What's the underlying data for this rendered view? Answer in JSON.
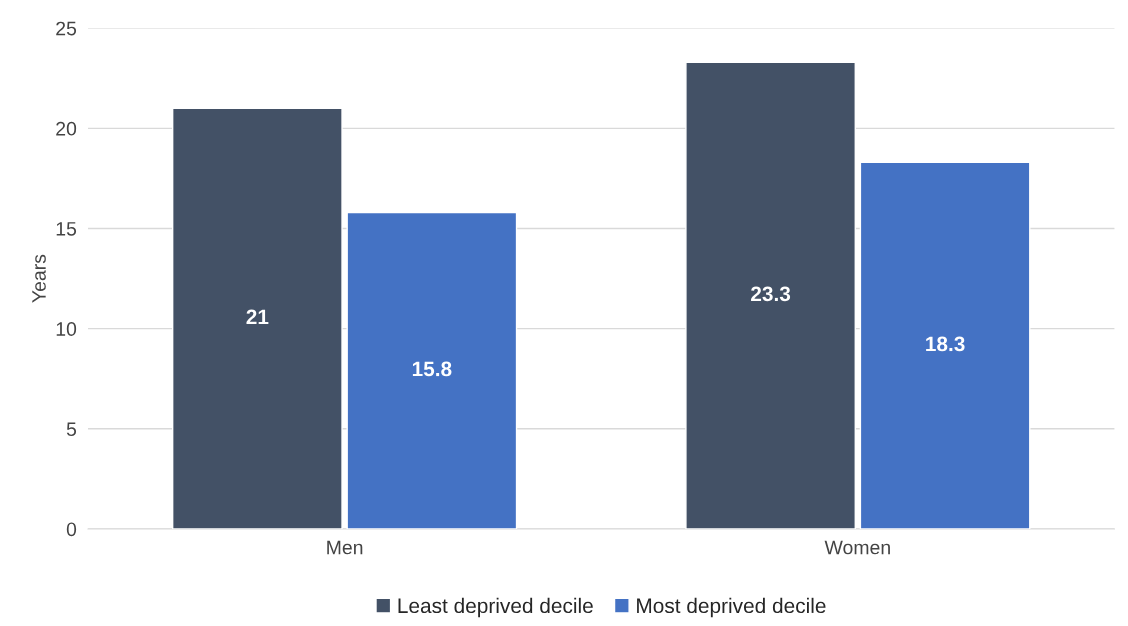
{
  "chart_data": {
    "type": "bar",
    "ylabel": "Years",
    "categories": [
      "Men",
      "Women"
    ],
    "series": [
      {
        "name": "Least deprived decile",
        "color": "#435166",
        "values": [
          21,
          23.3
        ]
      },
      {
        "name": "Most deprived decile",
        "color": "#4472c4",
        "values": [
          15.8,
          18.3
        ]
      }
    ],
    "ylim": [
      0,
      25
    ],
    "yticks": [
      0,
      5,
      10,
      15,
      20,
      25
    ],
    "grid": "y",
    "legend": "bottom",
    "data_labels": true
  }
}
